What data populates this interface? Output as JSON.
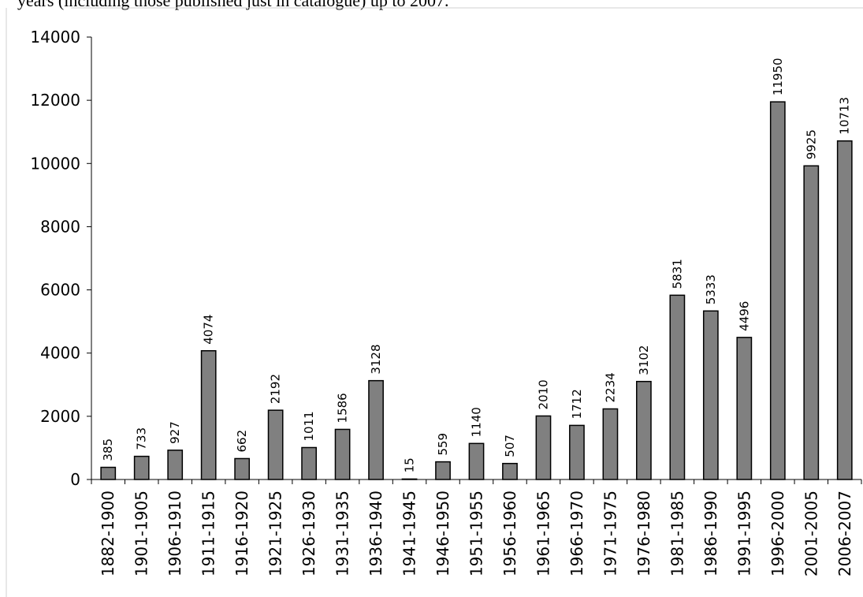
{
  "caption": "years (including those published just in catalogue) up to 2007.",
  "chart_data": {
    "type": "bar",
    "title": "",
    "xlabel": "",
    "ylabel": "",
    "ylim": [
      0,
      14000
    ],
    "yticks": [
      0,
      2000,
      4000,
      6000,
      8000,
      10000,
      12000,
      14000
    ],
    "grid": false,
    "legend": "none",
    "bar_color": "#808080",
    "bar_edge_color": "#000000",
    "categories": [
      "1882-1900",
      "1901-1905",
      "1906-1910",
      "1911-1915",
      "1916-1920",
      "1921-1925",
      "1926-1930",
      "1931-1935",
      "1936-1940",
      "1941-1945",
      "1946-1950",
      "1951-1955",
      "1956-1960",
      "1961-1965",
      "1966-1970",
      "1971-1975",
      "1976-1980",
      "1981-1985",
      "1986-1990",
      "1991-1995",
      "1996-2000",
      "2001-2005",
      "2006-2007"
    ],
    "values": [
      385,
      733,
      927,
      4074,
      662,
      2192,
      1011,
      1586,
      3128,
      15,
      559,
      1140,
      507,
      2010,
      1712,
      2234,
      3102,
      5831,
      5333,
      4496,
      11950,
      9925,
      10713
    ]
  }
}
